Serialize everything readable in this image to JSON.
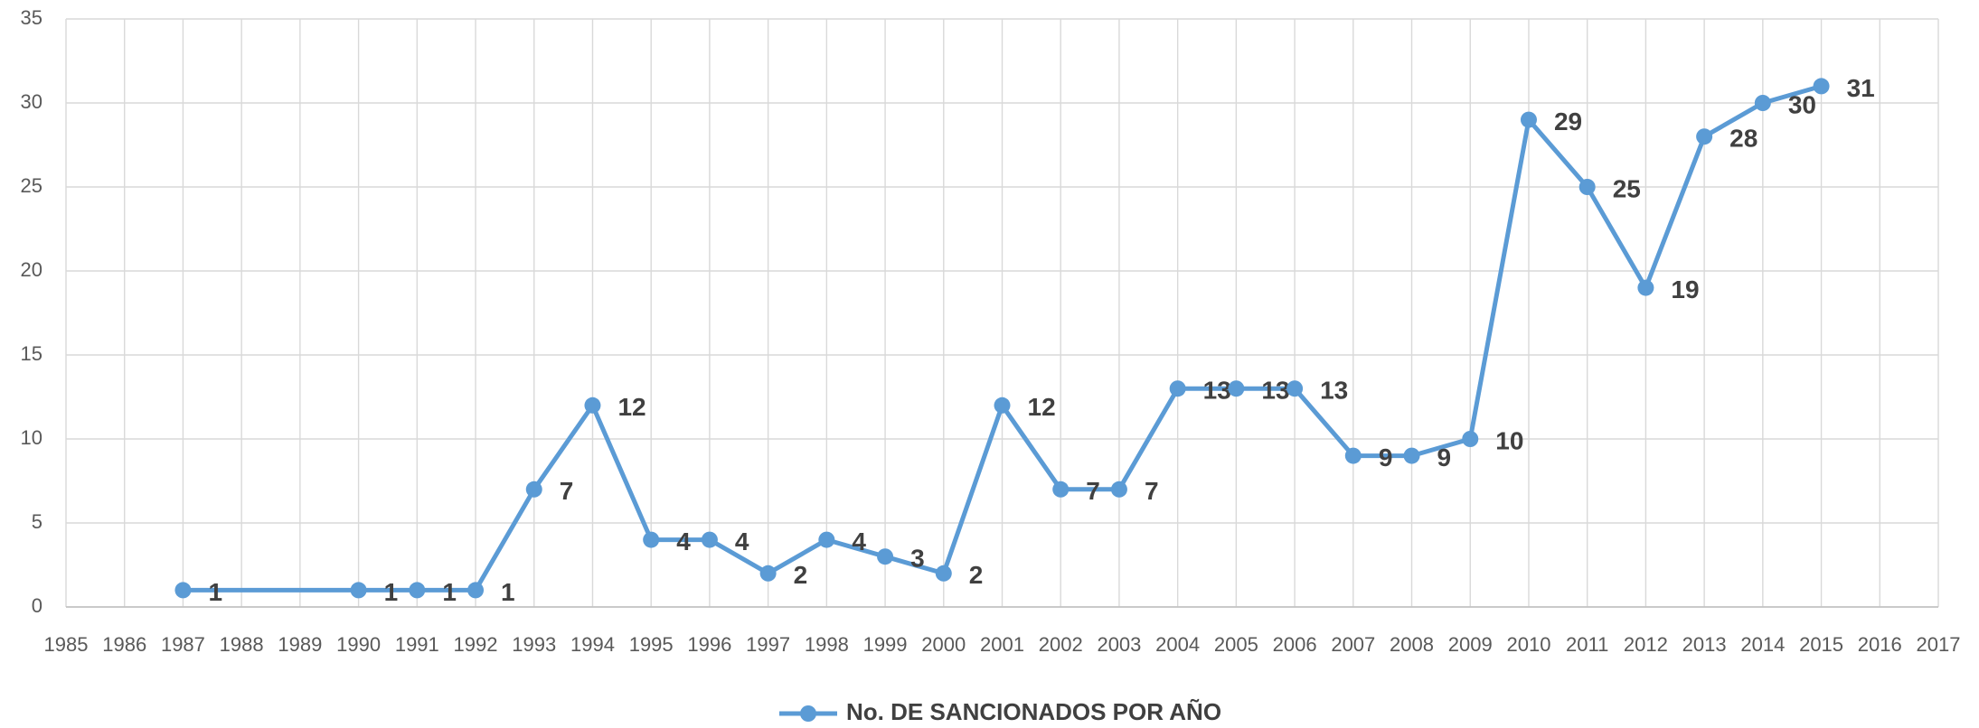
{
  "chart_data": {
    "type": "line",
    "x": [
      1987,
      1990,
      1991,
      1992,
      1993,
      1994,
      1995,
      1996,
      1997,
      1998,
      1999,
      2000,
      2001,
      2002,
      2003,
      2004,
      2005,
      2006,
      2007,
      2008,
      2009,
      2010,
      2011,
      2012,
      2013,
      2014,
      2015
    ],
    "series": [
      {
        "name": "No. DE SANCIONADOS POR AÑO",
        "color": "#5b9bd5",
        "values": [
          1,
          1,
          1,
          1,
          7,
          12,
          4,
          4,
          2,
          4,
          3,
          2,
          12,
          7,
          7,
          13,
          13,
          13,
          9,
          9,
          10,
          29,
          25,
          19,
          28,
          30,
          31
        ]
      }
    ],
    "xlim": [
      1985,
      2017
    ],
    "xticks": [
      1985,
      1986,
      1987,
      1988,
      1989,
      1990,
      1991,
      1992,
      1993,
      1994,
      1995,
      1996,
      1997,
      1998,
      1999,
      2000,
      2001,
      2002,
      2003,
      2004,
      2005,
      2006,
      2007,
      2008,
      2009,
      2010,
      2011,
      2012,
      2013,
      2014,
      2015,
      2016,
      2017
    ],
    "ylim": [
      0,
      35
    ],
    "yticks": [
      0,
      5,
      10,
      15,
      20,
      25,
      30,
      35
    ],
    "grid": true,
    "legend": "bottom"
  }
}
